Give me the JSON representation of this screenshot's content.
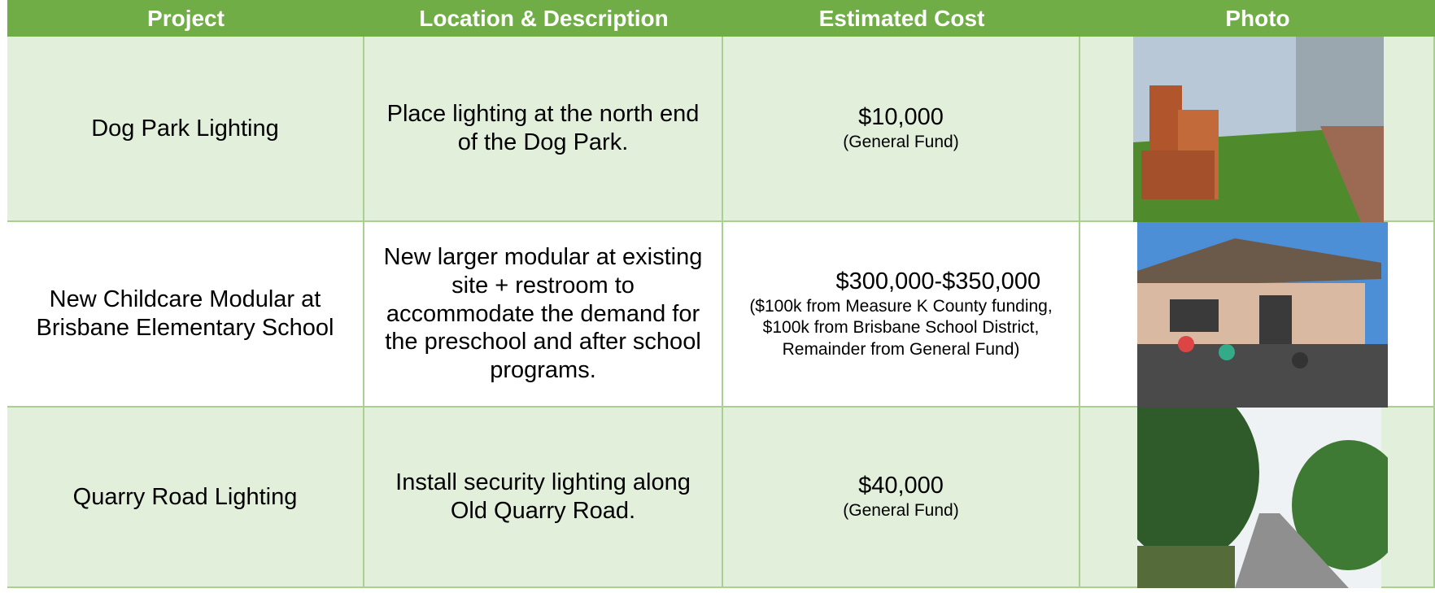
{
  "table": {
    "header": [
      "Project",
      "Location & Description",
      "Estimated Cost",
      "Photo"
    ],
    "rows": [
      {
        "project": "Dog Park Lighting",
        "description": "Place lighting at the north end of the Dog Park.",
        "cost": "$10,000",
        "funding": "(General Fund)"
      },
      {
        "project": "New Childcare Modular at Brisbane Elementary School",
        "description": "New larger modular at existing site + restroom to accommodate the demand for the preschool and after school programs.",
        "cost": "$300,000-$350,000",
        "funding": "($100k from Measure K County funding, $100k from Brisbane School District, Remainder from General Fund)"
      },
      {
        "project": "Quarry Road Lighting",
        "description": "Install security lighting along Old Quarry Road.",
        "cost": "$40,000",
        "funding": "(General Fund)"
      }
    ]
  }
}
